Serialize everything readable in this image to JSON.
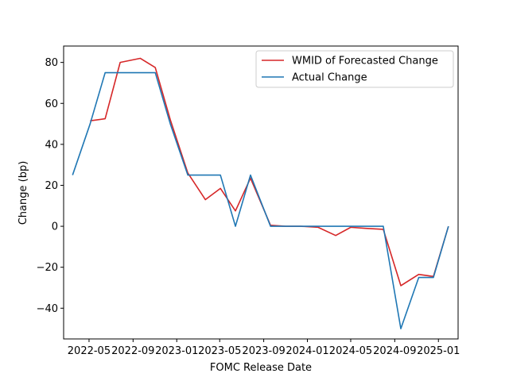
{
  "chart_data": {
    "type": "line",
    "title": "",
    "xlabel": "FOMC Release Date",
    "ylabel": "Change (bp)",
    "x_ticks": [
      "2022-05",
      "2022-09",
      "2023-01",
      "2023-05",
      "2023-09",
      "2024-01",
      "2024-05",
      "2024-09",
      "2025-01"
    ],
    "y_ticks": [
      "−40",
      "−20",
      "0",
      "20",
      "40",
      "60",
      "80"
    ],
    "ylim": [
      -55,
      88
    ],
    "xlim": [
      "2022-02-19",
      "2025-02-25"
    ],
    "grid": false,
    "legend_position": "top-right",
    "series": [
      {
        "name": "WMID of Forecasted Change",
        "color": "#d62728",
        "points": [
          [
            "2022-05-04",
            51.5
          ],
          [
            "2022-06-15",
            52.5
          ],
          [
            "2022-07-27",
            80
          ],
          [
            "2022-09-21",
            82
          ],
          [
            "2022-11-02",
            77.5
          ],
          [
            "2022-12-14",
            52
          ],
          [
            "2023-02-01",
            26
          ],
          [
            "2023-03-22",
            13
          ],
          [
            "2023-05-03",
            18.5
          ],
          [
            "2023-06-14",
            7.5
          ],
          [
            "2023-07-26",
            23.5
          ],
          [
            "2023-09-20",
            0.5
          ],
          [
            "2023-11-01",
            0
          ],
          [
            "2023-12-13",
            0
          ],
          [
            "2024-01-31",
            -0.5
          ],
          [
            "2024-03-20",
            -4.5
          ],
          [
            "2024-05-01",
            -0.5
          ],
          [
            "2024-06-12",
            -1
          ],
          [
            "2024-07-31",
            -1.5
          ],
          [
            "2024-09-18",
            -29
          ],
          [
            "2024-11-07",
            -23.5
          ],
          [
            "2024-12-18",
            -24.5
          ],
          [
            "2025-01-29",
            0
          ]
        ]
      },
      {
        "name": "Actual Change",
        "color": "#1f77b4",
        "points": [
          [
            "2022-03-16",
            25
          ],
          [
            "2022-05-04",
            50
          ],
          [
            "2022-06-15",
            75
          ],
          [
            "2022-07-27",
            75
          ],
          [
            "2022-09-21",
            75
          ],
          [
            "2022-11-02",
            75
          ],
          [
            "2022-12-14",
            50
          ],
          [
            "2023-02-01",
            25
          ],
          [
            "2023-03-22",
            25
          ],
          [
            "2023-05-03",
            25
          ],
          [
            "2023-06-14",
            0
          ],
          [
            "2023-07-26",
            25
          ],
          [
            "2023-09-20",
            0
          ],
          [
            "2023-11-01",
            0
          ],
          [
            "2023-12-13",
            0
          ],
          [
            "2024-01-31",
            0
          ],
          [
            "2024-03-20",
            0
          ],
          [
            "2024-05-01",
            0
          ],
          [
            "2024-06-12",
            0
          ],
          [
            "2024-07-31",
            0
          ],
          [
            "2024-09-18",
            -50
          ],
          [
            "2024-11-07",
            -25
          ],
          [
            "2024-12-18",
            -25
          ],
          [
            "2025-01-29",
            0
          ]
        ]
      }
    ]
  }
}
